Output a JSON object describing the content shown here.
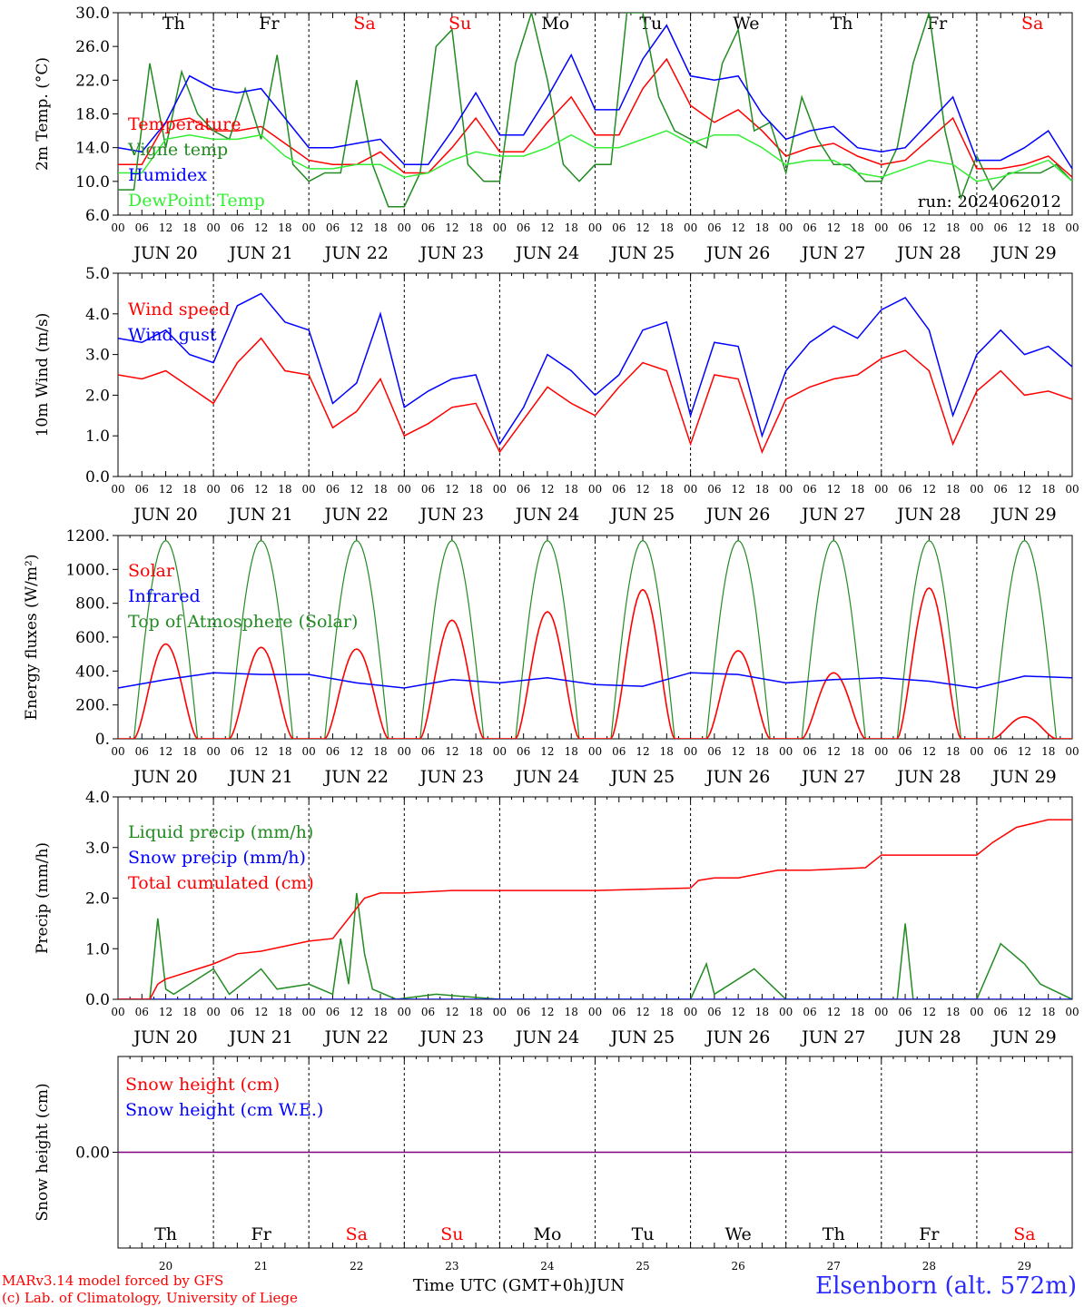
{
  "run_label": "run: 2024062012",
  "days": [
    {
      "abbr": "Th",
      "date": "JUN 20",
      "num": "20",
      "weekend": false
    },
    {
      "abbr": "Fr",
      "date": "JUN 21",
      "num": "21",
      "weekend": false
    },
    {
      "abbr": "Sa",
      "date": "JUN 22",
      "num": "22",
      "weekend": true
    },
    {
      "abbr": "Su",
      "date": "JUN 23",
      "num": "23",
      "weekend": true
    },
    {
      "abbr": "Mo",
      "date": "JUN 24",
      "num": "24",
      "weekend": false
    },
    {
      "abbr": "Tu",
      "date": "JUN 25",
      "num": "25",
      "weekend": false
    },
    {
      "abbr": "We",
      "date": "JUN 26",
      "num": "26",
      "weekend": false
    },
    {
      "abbr": "Th",
      "date": "JUN 27",
      "num": "27",
      "weekend": false
    },
    {
      "abbr": "Fr",
      "date": "JUN 28",
      "num": "28",
      "weekend": false
    },
    {
      "abbr": "Sa",
      "date": "JUN 29",
      "num": "29",
      "weekend": true
    }
  ],
  "hour_ticks": [
    "00",
    "06",
    "12",
    "18"
  ],
  "final_tick": "00",
  "footer": {
    "credit_line1": "MARv3.14 model forced by GFS",
    "credit_line2": "(c) Lab. of Climatology, University of Liege",
    "time_axis_label": "Time UTC (GMT+0h)",
    "month_label": "JUN",
    "station": "Elsenborn (alt. 572m)"
  },
  "colors": {
    "red": "#ff0000",
    "green": "#228b22",
    "blue": "#0000ff",
    "light_green": "#33ee33",
    "purple": "#800080",
    "weekend": "#ff0000"
  },
  "chart_data": [
    {
      "type": "line",
      "ylabel": "2m Temp. (°C)",
      "ylim": [
        6,
        30
      ],
      "yticks": [
        "6.0",
        "10.0",
        "14.0",
        "18.0",
        "22.0",
        "26.0",
        "30.0"
      ],
      "x_unit": "hours since 2024-06-20 00 UTC",
      "legend": [
        {
          "label": "Temperature",
          "color": "#ff0000"
        },
        {
          "label": "Vigne temp",
          "color": "#228b22"
        },
        {
          "label": "Humidex",
          "color": "#0000ff"
        },
        {
          "label": "DewPoint Temp",
          "color": "#33ee33"
        }
      ],
      "series": [
        {
          "name": "Temperature",
          "color": "#ff0000",
          "x": [
            0,
            6,
            12,
            18,
            24,
            30,
            36,
            42,
            48,
            54,
            60,
            66,
            72,
            78,
            84,
            90,
            96,
            102,
            108,
            114,
            120,
            126,
            132,
            138,
            144,
            150,
            156,
            162,
            168,
            174,
            180,
            186,
            192,
            198,
            204,
            210,
            216,
            222,
            228,
            234,
            240
          ],
          "y": [
            12,
            12,
            17,
            17.5,
            16,
            16,
            16.5,
            14.5,
            12.5,
            12,
            12,
            13.5,
            11,
            11,
            14,
            17.5,
            13.5,
            13.5,
            17,
            20,
            15.5,
            15.5,
            21,
            24.5,
            19,
            17,
            18.5,
            16,
            13,
            14,
            14.5,
            13,
            12,
            12.5,
            15,
            17.5,
            11.5,
            11.5,
            12,
            13,
            10.5
          ]
        },
        {
          "name": "Vigne temp",
          "color": "#228b22",
          "x": [
            0,
            4,
            8,
            12,
            16,
            20,
            24,
            28,
            32,
            36,
            40,
            44,
            48,
            52,
            56,
            60,
            64,
            68,
            72,
            76,
            80,
            84,
            88,
            92,
            96,
            100,
            104,
            108,
            112,
            116,
            120,
            124,
            128,
            132,
            136,
            140,
            144,
            148,
            152,
            156,
            160,
            164,
            168,
            172,
            176,
            180,
            184,
            188,
            192,
            196,
            200,
            204,
            208,
            212,
            216,
            220,
            224,
            228,
            232,
            236,
            240
          ],
          "y": [
            9,
            9,
            24,
            14,
            23,
            18,
            16,
            15,
            21,
            15,
            25,
            12,
            10,
            11,
            11,
            22,
            12,
            7,
            7,
            11,
            26,
            28,
            12,
            10,
            10,
            24,
            30,
            22,
            12,
            10,
            12,
            12,
            30,
            30,
            20,
            16,
            15,
            14,
            24,
            28,
            16,
            17,
            11,
            20,
            15,
            12,
            12,
            10,
            10,
            14,
            24,
            30,
            16,
            8,
            13,
            9,
            11,
            11,
            11,
            12,
            10
          ]
        },
        {
          "name": "Humidex",
          "color": "#0000ff",
          "x": [
            0,
            6,
            12,
            18,
            24,
            30,
            36,
            42,
            48,
            54,
            60,
            66,
            72,
            78,
            84,
            90,
            96,
            102,
            108,
            114,
            120,
            126,
            132,
            138,
            144,
            150,
            156,
            162,
            168,
            174,
            180,
            186,
            192,
            198,
            204,
            210,
            216,
            222,
            228,
            234,
            240
          ],
          "y": [
            14,
            13.5,
            17,
            22.5,
            21,
            20.5,
            21,
            17.5,
            14,
            14,
            14.5,
            15,
            12,
            12,
            16,
            20.5,
            15.5,
            15.5,
            20,
            25,
            18.5,
            18.5,
            24.5,
            28.5,
            22.5,
            22,
            22.5,
            18,
            15,
            16,
            16.5,
            14,
            13.5,
            14,
            17,
            20,
            12.5,
            12.5,
            14,
            16,
            11.5
          ]
        },
        {
          "name": "DewPoint Temp",
          "color": "#33ee33",
          "x": [
            0,
            6,
            12,
            18,
            24,
            30,
            36,
            42,
            48,
            54,
            60,
            66,
            72,
            78,
            84,
            90,
            96,
            102,
            108,
            114,
            120,
            126,
            132,
            138,
            144,
            150,
            156,
            162,
            168,
            174,
            180,
            186,
            192,
            198,
            204,
            210,
            216,
            222,
            228,
            234,
            240
          ],
          "y": [
            11,
            11,
            15,
            15.5,
            15,
            15,
            15.5,
            13,
            11.5,
            11.5,
            12,
            12,
            10.5,
            11,
            12.5,
            13.5,
            13,
            13,
            14,
            15.5,
            14,
            14,
            15,
            16,
            14.5,
            15.5,
            15.5,
            14,
            12,
            12.5,
            12.5,
            11,
            10.5,
            11.5,
            12.5,
            12,
            10,
            10.5,
            11.5,
            12.5,
            10
          ]
        }
      ]
    },
    {
      "type": "line",
      "ylabel": "10m Wind (m/s)",
      "ylim": [
        0,
        5
      ],
      "yticks": [
        "0.0",
        "1.0",
        "2.0",
        "3.0",
        "4.0",
        "5.0"
      ],
      "legend": [
        {
          "label": "Wind speed",
          "color": "#ff0000"
        },
        {
          "label": "Wind gust",
          "color": "#0000ff"
        }
      ],
      "series": [
        {
          "name": "Wind speed",
          "color": "#ff0000",
          "x": [
            0,
            6,
            12,
            18,
            24,
            30,
            36,
            42,
            48,
            54,
            60,
            66,
            72,
            78,
            84,
            90,
            96,
            102,
            108,
            114,
            120,
            126,
            132,
            138,
            144,
            150,
            156,
            162,
            168,
            174,
            180,
            186,
            192,
            198,
            204,
            210,
            216,
            222,
            228,
            234,
            240
          ],
          "y": [
            2.5,
            2.4,
            2.6,
            2.2,
            1.8,
            2.8,
            3.4,
            2.6,
            2.5,
            1.2,
            1.6,
            2.4,
            1.0,
            1.3,
            1.7,
            1.8,
            0.6,
            1.4,
            2.2,
            1.8,
            1.5,
            2.2,
            2.8,
            2.6,
            0.8,
            2.5,
            2.4,
            0.6,
            1.9,
            2.2,
            2.4,
            2.5,
            2.9,
            3.1,
            2.6,
            0.8,
            2.1,
            2.6,
            2.0,
            2.1,
            1.9
          ]
        },
        {
          "name": "Wind gust",
          "color": "#0000ff",
          "x": [
            0,
            6,
            12,
            18,
            24,
            30,
            36,
            42,
            48,
            54,
            60,
            66,
            72,
            78,
            84,
            90,
            96,
            102,
            108,
            114,
            120,
            126,
            132,
            138,
            144,
            150,
            156,
            162,
            168,
            174,
            180,
            186,
            192,
            198,
            204,
            210,
            216,
            222,
            228,
            234,
            240
          ],
          "y": [
            3.4,
            3.3,
            3.6,
            3.0,
            2.8,
            4.2,
            4.5,
            3.8,
            3.6,
            1.8,
            2.3,
            4.0,
            1.7,
            2.1,
            2.4,
            2.5,
            0.8,
            1.7,
            3.0,
            2.6,
            2.0,
            2.5,
            3.6,
            3.8,
            1.5,
            3.3,
            3.2,
            1.0,
            2.6,
            3.3,
            3.7,
            3.4,
            4.1,
            4.4,
            3.6,
            1.5,
            3.0,
            3.6,
            3.0,
            3.2,
            2.7
          ]
        }
      ]
    },
    {
      "type": "line",
      "ylabel": "Energy fluxes (W/m²)",
      "ylim": [
        0,
        1200
      ],
      "yticks": [
        "0.",
        "200.",
        "400.",
        "600.",
        "800.",
        "1000.",
        "1200."
      ],
      "legend": [
        {
          "label": "Solar",
          "color": "#ff0000"
        },
        {
          "label": "Infrared",
          "color": "#0000ff"
        },
        {
          "label": "Top of Atmosphere (Solar)",
          "color": "#228b22"
        }
      ],
      "toa_peak": 1170,
      "toa_daylight_hours": [
        4,
        20
      ],
      "solar_daily_peaks": [
        560,
        540,
        530,
        700,
        750,
        880,
        520,
        390,
        890,
        130
      ],
      "series": [
        {
          "name": "Infrared",
          "color": "#0000ff",
          "x": [
            0,
            12,
            24,
            36,
            48,
            60,
            72,
            84,
            96,
            108,
            120,
            132,
            144,
            156,
            168,
            180,
            192,
            204,
            216,
            228,
            240
          ],
          "y": [
            300,
            350,
            390,
            380,
            380,
            330,
            300,
            350,
            330,
            360,
            320,
            310,
            390,
            380,
            330,
            350,
            360,
            340,
            300,
            370,
            360
          ]
        }
      ]
    },
    {
      "type": "line",
      "ylabel": "Precip (mm/h)",
      "ylim": [
        0,
        4
      ],
      "yticks": [
        "0.0",
        "1.0",
        "2.0",
        "3.0",
        "4.0"
      ],
      "legend": [
        {
          "label": "Liquid precip (mm/h)",
          "color": "#228b22"
        },
        {
          "label": "Snow precip (mm/h)",
          "color": "#0000ff"
        },
        {
          "label": "Total cumulated (cm)",
          "color": "#ff0000"
        }
      ],
      "series": [
        {
          "name": "Liquid precip (mm/h)",
          "color": "#228b22",
          "x": [
            0,
            8,
            10,
            12,
            14,
            24,
            28,
            36,
            40,
            48,
            54,
            56,
            58,
            60,
            62,
            64,
            70,
            80,
            96,
            144,
            148,
            150,
            160,
            168,
            196,
            198,
            200,
            216,
            222,
            228,
            232,
            240
          ],
          "y": [
            0,
            0,
            1.6,
            0.2,
            0.1,
            0.6,
            0.1,
            0.6,
            0.2,
            0.3,
            0.1,
            1.2,
            0.3,
            2.1,
            0.9,
            0.2,
            0,
            0.1,
            0,
            0,
            0.7,
            0.1,
            0.6,
            0,
            0,
            1.5,
            0,
            0,
            1.1,
            0.7,
            0.3,
            0
          ]
        },
        {
          "name": "Snow precip (mm/h)",
          "color": "#0000ff",
          "x": [
            0,
            240
          ],
          "y": [
            0,
            0
          ]
        },
        {
          "name": "Total cumulated (cm)",
          "color": "#ff0000",
          "x": [
            0,
            8,
            10,
            12,
            24,
            30,
            36,
            48,
            54,
            58,
            62,
            66,
            72,
            84,
            96,
            120,
            144,
            146,
            150,
            156,
            166,
            174,
            188,
            192,
            198,
            200,
            216,
            220,
            226,
            234,
            240
          ],
          "y": [
            0,
            0,
            0.3,
            0.4,
            0.7,
            0.9,
            0.95,
            1.15,
            1.2,
            1.6,
            2.0,
            2.1,
            2.1,
            2.15,
            2.15,
            2.15,
            2.2,
            2.35,
            2.4,
            2.4,
            2.55,
            2.55,
            2.6,
            2.85,
            2.85,
            2.85,
            2.85,
            3.1,
            3.4,
            3.55,
            3.55
          ]
        }
      ]
    },
    {
      "type": "line",
      "ylabel": "Snow height (cm)",
      "ylim": [
        -1,
        1
      ],
      "yticks": [
        "0.00"
      ],
      "legend": [
        {
          "label": "Snow height (cm)",
          "color": "#ff0000"
        },
        {
          "label": "Snow height (cm W.E.)",
          "color": "#0000ff"
        }
      ],
      "series": [
        {
          "name": "Snow height (cm)",
          "color": "#800080",
          "x": [
            0,
            240
          ],
          "y": [
            0,
            0
          ]
        }
      ]
    }
  ]
}
